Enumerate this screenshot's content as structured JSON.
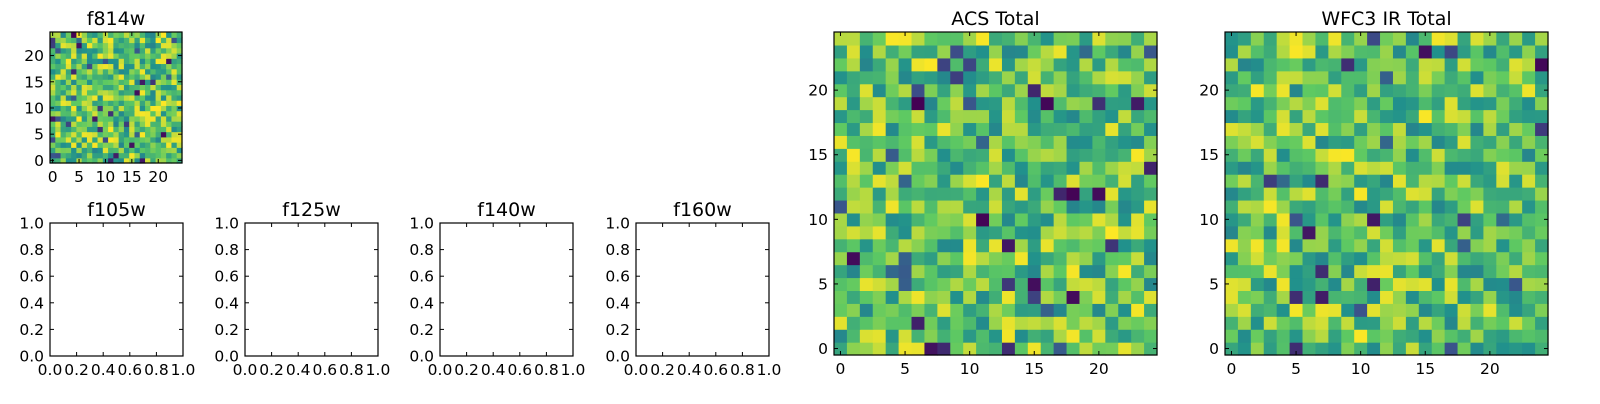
{
  "chart_data": [
    {
      "type": "heatmap",
      "name": "f814w",
      "title": "f814w",
      "grid_size": 25,
      "x_ticks": [
        "0",
        "5",
        "10",
        "15",
        "20"
      ],
      "y_ticks": [
        "0",
        "5",
        "10",
        "15",
        "20"
      ],
      "x_tick_values": [
        0,
        5,
        10,
        15,
        20
      ],
      "y_tick_values": [
        0,
        5,
        10,
        15,
        20
      ],
      "xlim": [
        -0.5,
        24.5
      ],
      "ylim": [
        -0.5,
        24.5
      ],
      "colormap": "viridis",
      "seed": 11
    },
    {
      "type": "empty",
      "name": "f105w",
      "title": "f105w",
      "x_ticks": [
        "0.0",
        "0.2",
        "0.4",
        "0.6",
        "0.8",
        "1.0"
      ],
      "y_ticks": [
        "0.0",
        "0.2",
        "0.4",
        "0.6",
        "0.8",
        "1.0"
      ],
      "x_tick_values": [
        0,
        0.2,
        0.4,
        0.6,
        0.8,
        1.0
      ],
      "y_tick_values": [
        0,
        0.2,
        0.4,
        0.6,
        0.8,
        1.0
      ],
      "xlim": [
        0,
        1
      ],
      "ylim": [
        0,
        1
      ]
    },
    {
      "type": "empty",
      "name": "f125w",
      "title": "f125w",
      "x_ticks": [
        "0.0",
        "0.2",
        "0.4",
        "0.6",
        "0.8",
        "1.0"
      ],
      "y_ticks": [
        "0.0",
        "0.2",
        "0.4",
        "0.6",
        "0.8",
        "1.0"
      ],
      "x_tick_values": [
        0,
        0.2,
        0.4,
        0.6,
        0.8,
        1.0
      ],
      "y_tick_values": [
        0,
        0.2,
        0.4,
        0.6,
        0.8,
        1.0
      ],
      "xlim": [
        0,
        1
      ],
      "ylim": [
        0,
        1
      ]
    },
    {
      "type": "empty",
      "name": "f140w",
      "title": "f140w",
      "x_ticks": [
        "0.0",
        "0.2",
        "0.4",
        "0.6",
        "0.8",
        "1.0"
      ],
      "y_ticks": [
        "0.0",
        "0.2",
        "0.4",
        "0.6",
        "0.8",
        "1.0"
      ],
      "x_tick_values": [
        0,
        0.2,
        0.4,
        0.6,
        0.8,
        1.0
      ],
      "y_tick_values": [
        0,
        0.2,
        0.4,
        0.6,
        0.8,
        1.0
      ],
      "xlim": [
        0,
        1
      ],
      "ylim": [
        0,
        1
      ]
    },
    {
      "type": "empty",
      "name": "f160w",
      "title": "f160w",
      "x_ticks": [
        "0.0",
        "0.2",
        "0.4",
        "0.6",
        "0.8",
        "1.0"
      ],
      "y_ticks": [
        "0.0",
        "0.2",
        "0.4",
        "0.6",
        "0.8",
        "1.0"
      ],
      "x_tick_values": [
        0,
        0.2,
        0.4,
        0.6,
        0.8,
        1.0
      ],
      "y_tick_values": [
        0,
        0.2,
        0.4,
        0.6,
        0.8,
        1.0
      ],
      "xlim": [
        0,
        1
      ],
      "ylim": [
        0,
        1
      ]
    },
    {
      "type": "heatmap",
      "name": "acs-total",
      "title": "ACS Total",
      "grid_size": 25,
      "x_ticks": [
        "0",
        "5",
        "10",
        "15",
        "20"
      ],
      "y_ticks": [
        "0",
        "5",
        "10",
        "15",
        "20"
      ],
      "x_tick_values": [
        0,
        5,
        10,
        15,
        20
      ],
      "y_tick_values": [
        0,
        5,
        10,
        15,
        20
      ],
      "xlim": [
        -0.5,
        24.5
      ],
      "ylim": [
        -0.5,
        24.5
      ],
      "colormap": "viridis",
      "seed": 29
    },
    {
      "type": "heatmap",
      "name": "wfc3-ir-total",
      "title": "WFC3 IR Total",
      "grid_size": 25,
      "x_ticks": [
        "0",
        "5",
        "10",
        "15",
        "20"
      ],
      "y_ticks": [
        "0",
        "5",
        "10",
        "15",
        "20"
      ],
      "x_tick_values": [
        0,
        5,
        10,
        15,
        20
      ],
      "y_tick_values": [
        0,
        5,
        10,
        15,
        20
      ],
      "xlim": [
        -0.5,
        24.5
      ],
      "ylim": [
        -0.5,
        24.5
      ],
      "colormap": "viridis",
      "seed": 53
    }
  ],
  "colors": {
    "axis": "#000000",
    "background": "#ffffff",
    "viridis_stops": [
      "#440154",
      "#3b528b",
      "#21918c",
      "#5ec962",
      "#fde725"
    ]
  }
}
